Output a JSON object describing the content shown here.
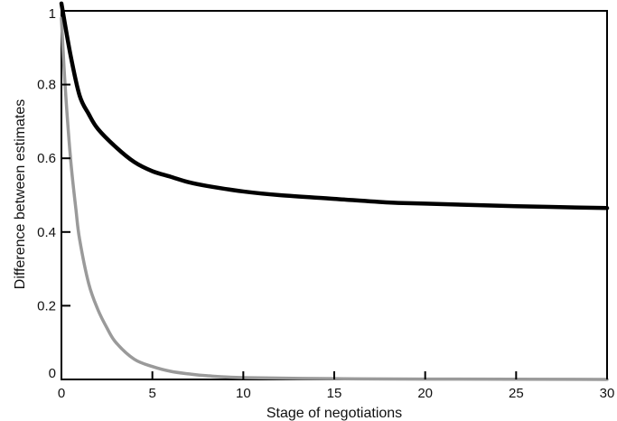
{
  "chart_data": {
    "type": "line",
    "title": "",
    "xlabel": "Stage of negotiations",
    "ylabel": "Difference between estimates",
    "xlim": [
      0,
      30
    ],
    "ylim": [
      0,
      1
    ],
    "x_ticks": [
      0,
      5,
      10,
      15,
      20,
      25,
      30
    ],
    "x_tick_labels": [
      "0",
      "5",
      "10",
      "15",
      "20",
      "25",
      "30"
    ],
    "y_ticks": [
      0,
      0.2,
      0.4,
      0.6,
      0.8,
      1
    ],
    "y_tick_labels": [
      "0",
      "0.2",
      "0.4",
      "0.6",
      "0.8",
      "1"
    ],
    "grid": false,
    "legend": "none",
    "series": [
      {
        "color": "#000000",
        "style": "thick-solid",
        "x": [
          0,
          0.5,
          1,
          1.5,
          2,
          3,
          4,
          5,
          6,
          7,
          8,
          10,
          12,
          15,
          18,
          20,
          25,
          30
        ],
        "y": [
          1.02,
          0.88,
          0.77,
          0.72,
          0.68,
          0.63,
          0.59,
          0.565,
          0.55,
          0.535,
          0.525,
          0.51,
          0.5,
          0.49,
          0.48,
          0.477,
          0.47,
          0.465
        ]
      },
      {
        "color": "#9a9a9a",
        "style": "thick-solid",
        "x": [
          0,
          0.2,
          0.5,
          0.8,
          1,
          1.5,
          2,
          2.5,
          3,
          4,
          5,
          6,
          7,
          8,
          10,
          15,
          20,
          30
        ],
        "y": [
          0.98,
          0.8,
          0.6,
          0.46,
          0.38,
          0.26,
          0.19,
          0.14,
          0.1,
          0.055,
          0.035,
          0.022,
          0.015,
          0.01,
          0.005,
          0.002,
          0.001,
          0.0
        ]
      }
    ]
  }
}
